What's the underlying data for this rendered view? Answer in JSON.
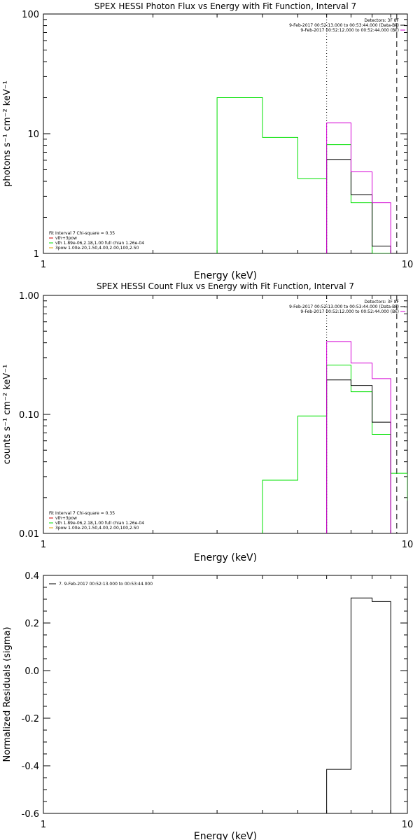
{
  "chart_data": [
    {
      "type": "line",
      "title": "SPEX HESSI Photon Flux vs Energy with Fit Function, Interval 7",
      "xlabel": "Energy (keV)",
      "ylabel": "photons s⁻¹ cm⁻² keV⁻¹",
      "xscale": "log",
      "yscale": "log",
      "xlim": [
        1,
        10
      ],
      "ylim": [
        1,
        100
      ],
      "x_tick_labels": [
        "1",
        "10"
      ],
      "y_tick_labels": [
        "1",
        "10",
        "100"
      ],
      "y_ticks": [
        1,
        10,
        100
      ],
      "legend_top": [
        "Detectors: 3F 8F",
        "9-Feb-2017 00:52:13.000 to 00:53:44.000 (Data-Bk)",
        "9-Feb-2017 00:52:12.000 to 00:52:44.000 (Bk)"
      ],
      "legend_bottom": [
        "Fit Interval 7   Chi-square = 0.35",
        "vth+3pow",
        "vth 1.89e-06,2.18,1.00  full chian 1.26e-04",
        "3pow 1.00e-20,1.50,4.00,2.00,100,2.50"
      ],
      "vlines": [
        {
          "x": 6.0,
          "style": "dotted"
        },
        {
          "x": 9.35,
          "style": "dashed"
        }
      ],
      "series": [
        {
          "color": "#00e000",
          "edges": [
            3.0,
            4.0,
            5.0,
            6.0,
            7.0,
            8.0,
            9.0
          ],
          "values": [
            20.0,
            9.3,
            4.2,
            8.1,
            2.65,
            1.0
          ]
        },
        {
          "color": "#000000",
          "edges": [
            6.0,
            7.0,
            8.0,
            9.0
          ],
          "values": [
            6.1,
            3.1,
            1.15
          ]
        },
        {
          "color": "#d400d4",
          "edges": [
            6.0,
            7.0,
            8.0,
            9.0
          ],
          "values": [
            12.3,
            4.8,
            2.65
          ]
        }
      ]
    },
    {
      "type": "line",
      "title": "SPEX HESSI Count Flux vs Energy with Fit Function, Interval 7",
      "xlabel": "Energy (keV)",
      "ylabel": "counts s⁻¹ cm⁻² keV⁻¹",
      "xscale": "log",
      "yscale": "log",
      "xlim": [
        1,
        10
      ],
      "ylim": [
        0.01,
        1
      ],
      "x_tick_labels": [
        "1",
        "10"
      ],
      "y_tick_labels": [
        "0.01",
        "0.10",
        "1.00"
      ],
      "y_ticks": [
        0.01,
        0.1,
        1
      ],
      "legend_top": [
        "Detectors: 3F 8F",
        "9-Feb-2017 00:52:13.000 to 00:53:44.000 (Data-Bk)",
        "9-Feb-2017 00:52:12.000 to 00:52:44.000 (Bk)"
      ],
      "legend_bottom": [
        "Fit Interval 7   Chi-square = 0.35",
        "vth+3pow",
        "vth 1.89e-06,2.18,1.00  full chian 1.26e-04",
        "3pow 1.00e-20,1.50,4.00,2.00,100,2.50"
      ],
      "vlines": [
        {
          "x": 6.0,
          "style": "dotted"
        },
        {
          "x": 9.35,
          "style": "dashed"
        }
      ],
      "series": [
        {
          "color": "#00e000",
          "edges": [
            4.0,
            5.0,
            6.0,
            7.0,
            8.0,
            9.0,
            10.0,
            10.5
          ],
          "values": [
            0.028,
            0.097,
            0.26,
            0.155,
            0.068,
            0.032,
            0.019
          ]
        },
        {
          "color": "#000000",
          "edges": [
            6.0,
            7.0,
            8.0,
            9.0
          ],
          "values": [
            0.195,
            0.175,
            0.086
          ]
        },
        {
          "color": "#d400d4",
          "edges": [
            6.0,
            7.0,
            8.0,
            9.0
          ],
          "values": [
            0.41,
            0.27,
            0.2
          ]
        }
      ]
    },
    {
      "type": "line",
      "title": "",
      "xlabel": "Energy (keV)",
      "ylabel": "Normalized Residuals (sigma)",
      "xscale": "log",
      "yscale": "linear",
      "xlim": [
        1,
        10
      ],
      "ylim": [
        -0.6,
        0.4
      ],
      "x_tick_labels": [
        "1",
        "10"
      ],
      "y_tick_labels": [
        "-0.6",
        "-0.4",
        "-0.2",
        "0.0",
        "0.2",
        "0.4"
      ],
      "y_ticks": [
        -0.6,
        -0.4,
        -0.2,
        0.0,
        0.2,
        0.4
      ],
      "legend_top": [
        "7.  9-Feb-2017 00:52:13.000 to 00:53:44.000"
      ],
      "legend_bottom": [],
      "vlines": [],
      "series": [
        {
          "color": "#000000",
          "edges": [
            6.0,
            7.0,
            8.0,
            9.0
          ],
          "values": [
            -0.415,
            0.305,
            0.29
          ]
        }
      ]
    }
  ]
}
